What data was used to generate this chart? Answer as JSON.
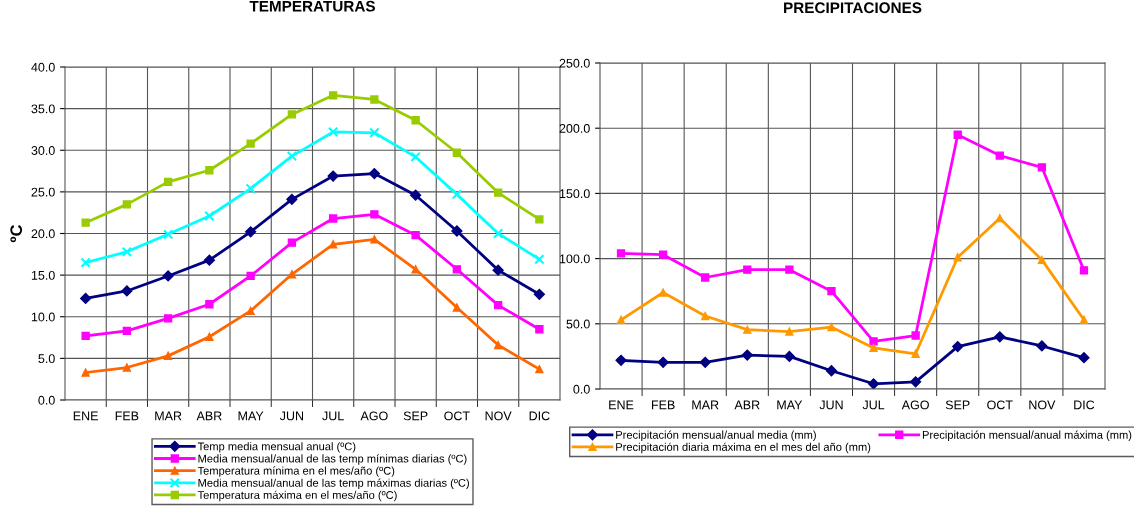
{
  "chart_data": [
    {
      "type": "line",
      "title": "TEMPERATURAS",
      "ylabel": "ºC",
      "categories": [
        "ENE",
        "FEB",
        "MAR",
        "ABR",
        "MAY",
        "JUN",
        "JUL",
        "AGO",
        "SEP",
        "OCT",
        "NOV",
        "DIC"
      ],
      "ylim": [
        0,
        40
      ],
      "yticks": [
        {
          "value": 0,
          "label": "0.0"
        },
        {
          "value": 5,
          "label": "5.0"
        },
        {
          "value": 10,
          "label": "10.0"
        },
        {
          "value": 15,
          "label": "15.0"
        },
        {
          "value": 20,
          "label": "20.0"
        },
        {
          "value": 25,
          "label": "25.0"
        },
        {
          "value": 30,
          "label": "30.0"
        },
        {
          "value": 35,
          "label": "35.0"
        },
        {
          "value": 40,
          "label": "40.0"
        }
      ],
      "grid": true,
      "legend": "bottom",
      "series": [
        {
          "name": "Temp media mensual anual (ºC)",
          "color": "#000080",
          "marker": "diamond",
          "values": [
            12.2,
            13.1,
            14.9,
            16.8,
            20.2,
            24.1,
            26.9,
            27.2,
            24.6,
            20.3,
            15.6,
            12.7
          ]
        },
        {
          "name": "Media mensual/anual de las temp mínimas diarias (ºC)",
          "color": "#ff00ff",
          "marker": "square",
          "values": [
            7.7,
            8.3,
            9.8,
            11.5,
            14.9,
            18.9,
            21.8,
            22.3,
            19.8,
            15.7,
            11.4,
            8.5
          ]
        },
        {
          "name": "Temperatura mínima en el mes/año (ºC)",
          "color": "#ff6600",
          "marker": "triangle",
          "values": [
            3.3,
            3.9,
            5.3,
            7.6,
            10.7,
            15.1,
            18.7,
            19.3,
            15.7,
            11.1,
            6.6,
            3.7
          ]
        },
        {
          "name": "Media mensual/anual de las temp máximas diarias (ºC)",
          "color": "#00ffff",
          "marker": "cross",
          "values": [
            16.5,
            17.8,
            19.9,
            22.1,
            25.4,
            29.3,
            32.2,
            32.1,
            29.2,
            24.7,
            20.0,
            16.9
          ]
        },
        {
          "name": "Temperatura máxima en el mes/año (ºC)",
          "color": "#99cc00",
          "marker": "square",
          "values": [
            21.3,
            23.5,
            26.2,
            27.6,
            30.8,
            34.3,
            36.6,
            36.1,
            33.6,
            29.7,
            24.9,
            21.7
          ]
        }
      ]
    },
    {
      "type": "line",
      "title": "PRECIPITACIONES",
      "categories": [
        "ENE",
        "FEB",
        "MAR",
        "ABR",
        "MAY",
        "JUN",
        "JUL",
        "AGO",
        "SEP",
        "OCT",
        "NOV",
        "DIC"
      ],
      "ylim": [
        0,
        250
      ],
      "yticks": [
        {
          "value": 0,
          "label": "0.0"
        },
        {
          "value": 50,
          "label": "50.0"
        },
        {
          "value": 100,
          "label": "100.0"
        },
        {
          "value": 150,
          "label": "150.0"
        },
        {
          "value": 200,
          "label": "200.0"
        },
        {
          "value": 250,
          "label": "250.0"
        }
      ],
      "grid": true,
      "legend": "bottom",
      "series": [
        {
          "name": "Precipitación mensual/anual media (mm)",
          "color": "#000080",
          "marker": "diamond",
          "values": [
            22,
            20.5,
            20.5,
            26,
            25,
            14,
            4,
            5.5,
            32.5,
            40,
            33,
            24
          ]
        },
        {
          "name": "Precipitación mensual/anual máxima (mm)",
          "color": "#ff00ff",
          "marker": "square",
          "values": [
            104,
            103,
            85.5,
            91.5,
            91.5,
            75,
            36.5,
            41,
            195,
            179,
            170,
            91
          ]
        },
        {
          "name": "Precipitación diaria máxima en el mes del año (mm)",
          "color": "#ff9900",
          "marker": "triangle",
          "values": [
            53,
            74,
            56,
            45.5,
            44,
            47.5,
            31.5,
            27,
            101,
            131,
            99,
            53
          ]
        }
      ]
    }
  ]
}
